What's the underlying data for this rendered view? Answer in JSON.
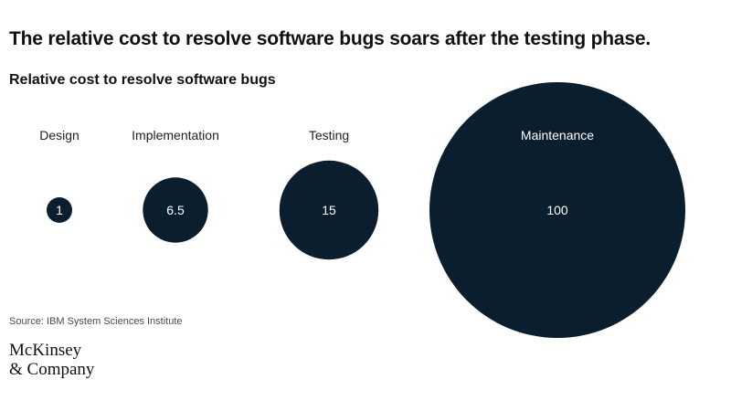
{
  "headline": "The relative cost to resolve software bugs soars after the testing phase.",
  "source": "Source: IBM System Sciences Institute",
  "logo": {
    "line1": "McKinsey",
    "line2": "& Company"
  },
  "colors": {
    "bubble": "#0a1e2e",
    "bubble_text": "#ffffff",
    "label_text": "#222222"
  },
  "chart_data": {
    "type": "bubble",
    "title": "Relative cost to resolve software bugs",
    "categories": [
      "Design",
      "Implementation",
      "Testing",
      "Maintenance"
    ],
    "values": [
      1,
      6.5,
      15,
      100
    ],
    "value_labels": [
      "1",
      "6.5",
      "15",
      "100"
    ],
    "size_encoding": "area proportional to value"
  }
}
